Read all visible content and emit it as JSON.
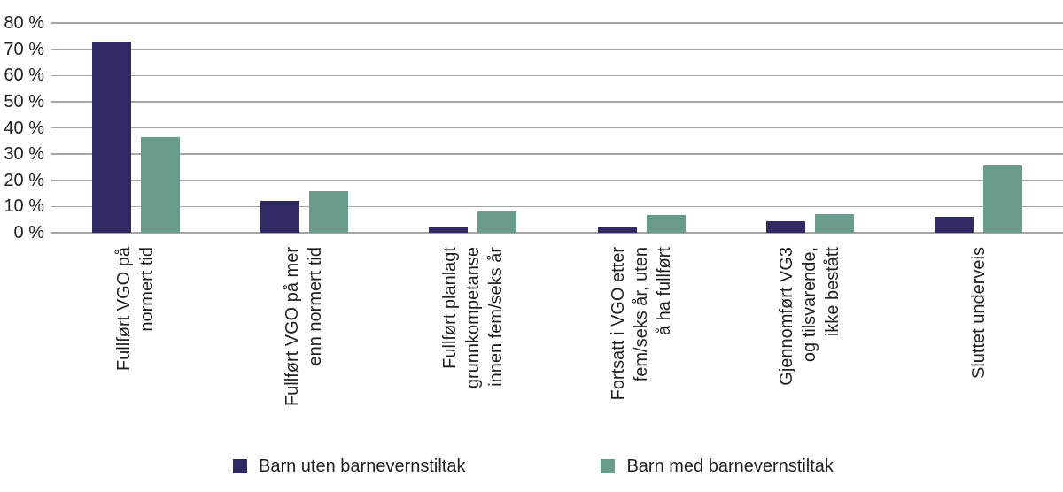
{
  "chart_data": {
    "type": "bar",
    "title": "",
    "xlabel": "",
    "ylabel": "",
    "categories": [
      "Fullført VGO på\nnormert tid",
      "Fullført VGO på mer\nenn normert tid",
      "Fullført planlagt\ngrunnkompetanse\ninnen fem/seks år",
      "Fortsatt i VGO etter\nfem/seks år, uten\nå ha fullført",
      "Gjennomført VG3\nog tilsvarende,\nikke bestått",
      "Sluttet underveis"
    ],
    "series": [
      {
        "name": "Barn uten barnevernstiltak",
        "color": "#2f2a64",
        "values": [
          72.8,
          12.3,
          1.9,
          2.1,
          4.5,
          6.2
        ]
      },
      {
        "name": "Barn med barnevernstiltak",
        "color": "#6a9c8e",
        "values": [
          36.6,
          15.8,
          8.1,
          6.8,
          7.0,
          25.5
        ]
      }
    ],
    "ylim": [
      0,
      80
    ],
    "ytick_step": 10,
    "ytick_suffix": " %",
    "grid": true,
    "gridline_color": "#a5a5a5",
    "text_color": "#231f20",
    "background_color": "#ffffff",
    "legend_position": "bottom"
  }
}
